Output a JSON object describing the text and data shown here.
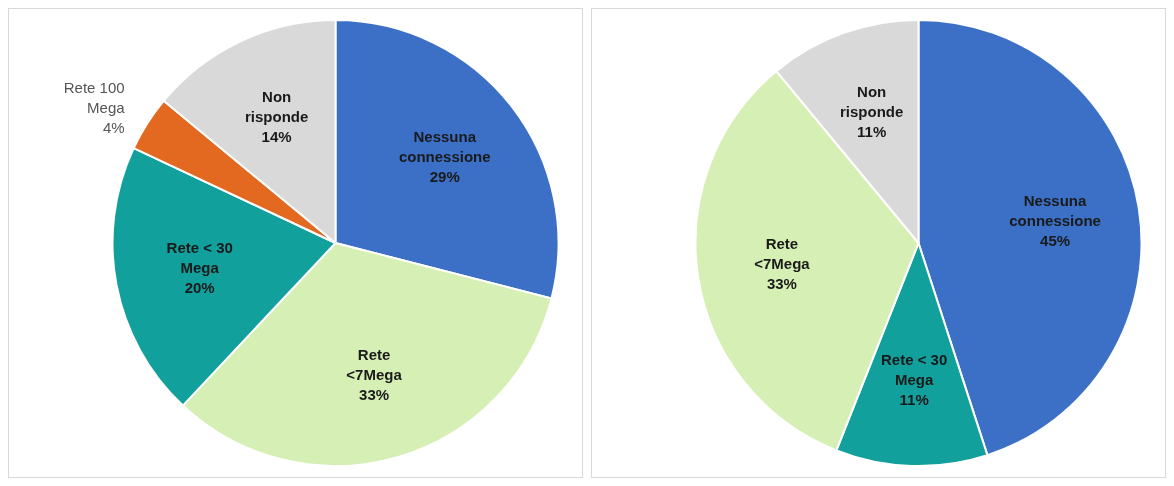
{
  "chart_data": [
    {
      "type": "pie",
      "categories": [
        "Nessuna connessione",
        "Rete <7Mega",
        "Rete < 30 Mega",
        "Rete 100 Mega",
        "Non risponde"
      ],
      "values": [
        29,
        33,
        20,
        4,
        14
      ],
      "value_labels": [
        "29%",
        "33%",
        "20%",
        "4%",
        "14%"
      ],
      "colors": [
        "#3b70c6",
        "#d6efb5",
        "#12a09c",
        "#e2691f",
        "#d9d9d9"
      ],
      "legend": false
    },
    {
      "type": "pie",
      "categories": [
        "Nessuna connessione",
        "Rete < 30 Mega",
        "Rete <7Mega",
        "Non risponde"
      ],
      "values": [
        45,
        11,
        33,
        11
      ],
      "value_labels": [
        "45%",
        "11%",
        "33%",
        "11%"
      ],
      "colors": [
        "#3b70c6",
        "#12a09c",
        "#d6efb5",
        "#d9d9d9"
      ],
      "legend": false
    }
  ]
}
